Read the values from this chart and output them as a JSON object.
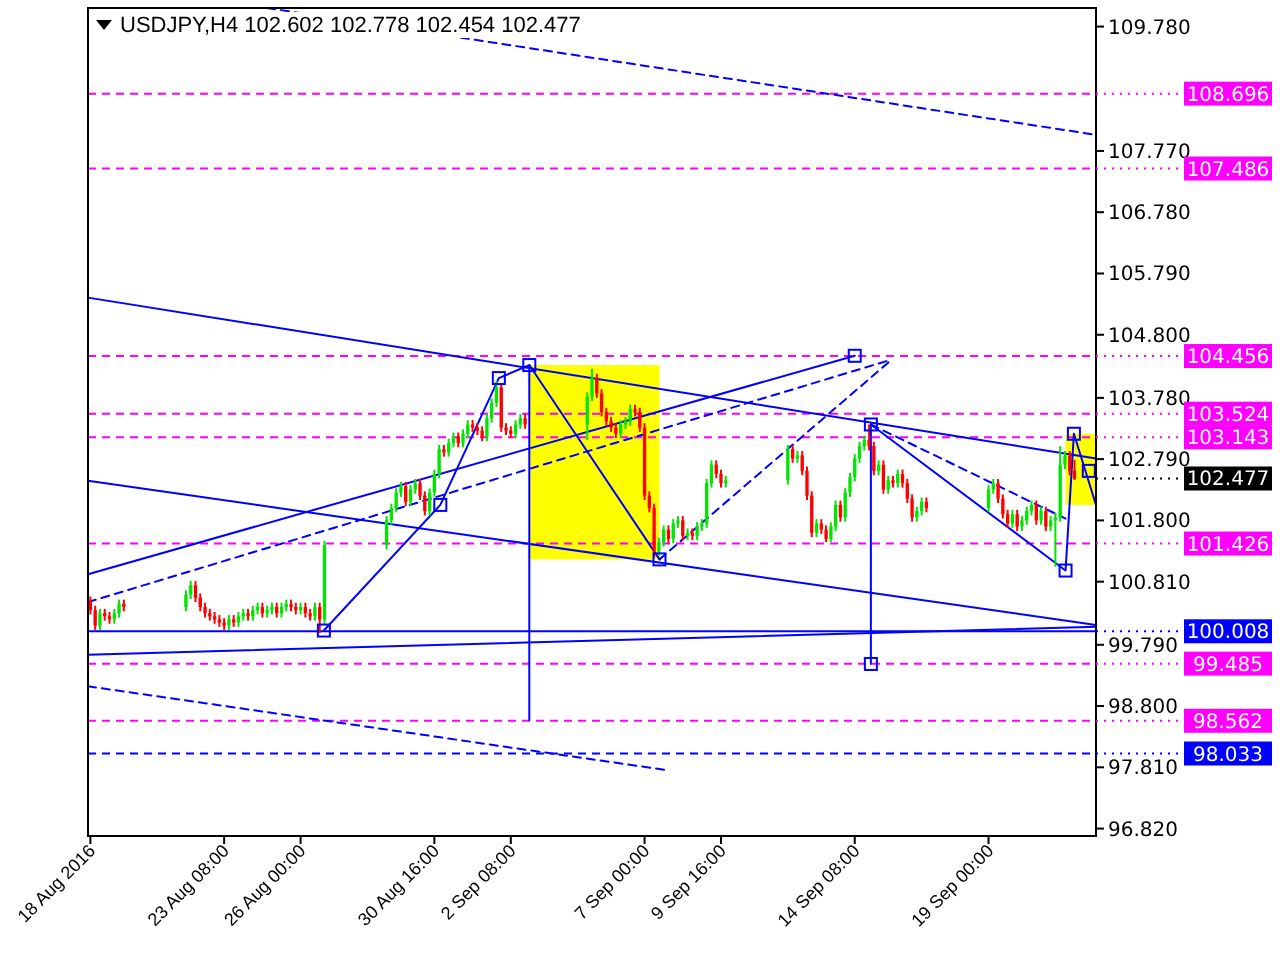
{
  "chart_data": {
    "type": "candlestick",
    "title": "USDJPY,H4  102.602 102.778 102.454 102.477",
    "x": [
      "2016-08-18T16:00",
      "2016-08-18T20:00",
      "2016-08-19T00:00",
      "2016-08-19T04:00",
      "2016-08-19T08:00",
      "2016-08-19T12:00",
      "2016-08-19T16:00",
      "2016-08-19T20:00",
      "2016-08-22T00:00",
      "2016-08-22T04:00",
      "2016-08-22T08:00",
      "2016-08-22T12:00",
      "2016-08-22T16:00",
      "2016-08-22T20:00",
      "2016-08-23T00:00",
      "2016-08-23T04:00",
      "2016-08-23T08:00",
      "2016-08-23T12:00",
      "2016-08-23T16:00",
      "2016-08-23T20:00",
      "2016-08-24T00:00",
      "2016-08-24T04:00",
      "2016-08-24T08:00",
      "2016-08-24T12:00",
      "2016-08-24T16:00",
      "2016-08-24T20:00",
      "2016-08-25T00:00",
      "2016-08-25T04:00",
      "2016-08-25T08:00",
      "2016-08-25T12:00",
      "2016-08-25T16:00",
      "2016-08-25T20:00",
      "2016-08-26T00:00",
      "2016-08-26T04:00",
      "2016-08-26T08:00",
      "2016-08-26T12:00",
      "2016-08-26T16:00",
      "2016-08-26T20:00",
      "2016-08-29T00:00",
      "2016-08-29T04:00",
      "2016-08-29T08:00",
      "2016-08-29T12:00",
      "2016-08-29T16:00",
      "2016-08-29T20:00",
      "2016-08-30T00:00",
      "2016-08-30T04:00",
      "2016-08-30T08:00",
      "2016-08-30T12:00",
      "2016-08-30T16:00",
      "2016-08-30T20:00",
      "2016-08-31T00:00",
      "2016-08-31T04:00",
      "2016-08-31T08:00",
      "2016-08-31T12:00",
      "2016-08-31T16:00",
      "2016-08-31T20:00",
      "2016-09-01T00:00",
      "2016-09-01T04:00",
      "2016-09-01T08:00",
      "2016-09-01T12:00",
      "2016-09-01T16:00",
      "2016-09-01T20:00",
      "2016-09-02T00:00",
      "2016-09-02T04:00",
      "2016-09-02T08:00",
      "2016-09-02T12:00",
      "2016-09-02T16:00",
      "2016-09-02T20:00",
      "2016-09-05T00:00",
      "2016-09-05T04:00",
      "2016-09-05T08:00",
      "2016-09-05T12:00",
      "2016-09-05T16:00",
      "2016-09-05T20:00",
      "2016-09-06T00:00",
      "2016-09-06T04:00",
      "2016-09-06T08:00",
      "2016-09-06T12:00",
      "2016-09-06T16:00",
      "2016-09-06T20:00",
      "2016-09-07T00:00",
      "2016-09-07T04:00",
      "2016-09-07T08:00",
      "2016-09-07T12:00",
      "2016-09-07T16:00",
      "2016-09-07T20:00",
      "2016-09-08T00:00",
      "2016-09-08T04:00",
      "2016-09-08T08:00",
      "2016-09-08T12:00",
      "2016-09-08T16:00",
      "2016-09-08T20:00",
      "2016-09-09T00:00",
      "2016-09-09T04:00",
      "2016-09-09T08:00",
      "2016-09-09T12:00",
      "2016-09-09T16:00",
      "2016-09-09T20:00",
      "2016-09-12T00:00",
      "2016-09-12T04:00",
      "2016-09-12T08:00",
      "2016-09-12T12:00",
      "2016-09-12T16:00",
      "2016-09-12T20:00",
      "2016-09-13T00:00",
      "2016-09-13T04:00",
      "2016-09-13T08:00",
      "2016-09-13T12:00",
      "2016-09-13T16:00",
      "2016-09-13T20:00",
      "2016-09-14T00:00",
      "2016-09-14T04:00",
      "2016-09-14T08:00",
      "2016-09-14T12:00",
      "2016-09-14T16:00",
      "2016-09-14T20:00",
      "2016-09-15T00:00",
      "2016-09-15T04:00",
      "2016-09-15T08:00",
      "2016-09-15T12:00",
      "2016-09-15T16:00",
      "2016-09-15T20:00",
      "2016-09-16T00:00",
      "2016-09-16T04:00",
      "2016-09-16T08:00",
      "2016-09-16T12:00",
      "2016-09-16T16:00",
      "2016-09-16T20:00",
      "2016-09-19T00:00",
      "2016-09-19T04:00",
      "2016-09-19T08:00",
      "2016-09-19T12:00",
      "2016-09-19T16:00",
      "2016-09-19T20:00",
      "2016-09-20T00:00",
      "2016-09-20T04:00",
      "2016-09-20T08:00",
      "2016-09-20T12:00",
      "2016-09-20T16:00",
      "2016-09-20T20:00",
      "2016-09-21T00:00",
      "2016-09-21T04:00",
      "2016-09-21T08:00",
      "2016-09-21T12:00",
      "2016-09-21T16:00",
      "2016-09-21T20:00",
      "2016-09-22T00:00"
    ],
    "xlim": [
      "2016-08-18T14:00",
      "2016-09-22T18:00"
    ],
    "xticks": [
      {
        "value": "2016-08-18T16:00",
        "label": "18 Aug 2016"
      },
      {
        "value": "2016-08-23T08:00",
        "label": "23 Aug 08:00"
      },
      {
        "value": "2016-08-26T00:00",
        "label": "26 Aug 00:00"
      },
      {
        "value": "2016-08-30T16:00",
        "label": "30 Aug 16:00"
      },
      {
        "value": "2016-09-02T08:00",
        "label": "2 Sep 08:00"
      },
      {
        "value": "2016-09-07T00:00",
        "label": "7 Sep 00:00"
      },
      {
        "value": "2016-09-09T16:00",
        "label": "9 Sep 16:00"
      },
      {
        "value": "2016-09-14T08:00",
        "label": "14 Sep 08:00"
      },
      {
        "value": "2016-09-19T00:00",
        "label": "19 Sep 00:00"
      }
    ],
    "ohlc": [
      [
        100.5,
        100.57,
        100.28,
        100.35
      ],
      [
        100.35,
        100.42,
        100.03,
        100.1
      ],
      [
        100.1,
        100.37,
        100.03,
        100.3
      ],
      [
        100.3,
        100.37,
        100.18,
        100.25
      ],
      [
        100.25,
        100.32,
        100.13,
        100.2
      ],
      [
        100.2,
        100.37,
        100.13,
        100.3
      ],
      [
        100.3,
        100.52,
        100.23,
        100.45
      ],
      [
        100.45,
        100.52,
        100.33,
        100.4
      ],
      [
        100.4,
        100.67,
        100.33,
        100.6
      ],
      [
        100.6,
        100.82,
        100.53,
        100.75
      ],
      [
        100.75,
        100.82,
        100.48,
        100.55
      ],
      [
        100.55,
        100.62,
        100.33,
        100.4
      ],
      [
        100.4,
        100.47,
        100.23,
        100.3
      ],
      [
        100.3,
        100.37,
        100.18,
        100.25
      ],
      [
        100.25,
        100.32,
        100.13,
        100.2
      ],
      [
        100.2,
        100.27,
        100.08,
        100.15
      ],
      [
        100.15,
        100.22,
        100.03,
        100.1
      ],
      [
        100.1,
        100.27,
        100.03,
        100.2
      ],
      [
        100.2,
        100.27,
        100.08,
        100.15
      ],
      [
        100.15,
        100.32,
        100.08,
        100.25
      ],
      [
        100.25,
        100.37,
        100.18,
        100.3
      ],
      [
        100.3,
        100.37,
        100.18,
        100.25
      ],
      [
        100.25,
        100.42,
        100.18,
        100.35
      ],
      [
        100.35,
        100.47,
        100.28,
        100.4
      ],
      [
        100.4,
        100.47,
        100.23,
        100.3
      ],
      [
        100.3,
        100.42,
        100.23,
        100.35
      ],
      [
        100.35,
        100.47,
        100.28,
        100.4
      ],
      [
        100.4,
        100.47,
        100.23,
        100.3
      ],
      [
        100.3,
        100.47,
        100.23,
        100.4
      ],
      [
        100.4,
        100.52,
        100.33,
        100.45
      ],
      [
        100.45,
        100.52,
        100.33,
        100.4
      ],
      [
        100.4,
        100.47,
        100.28,
        100.35
      ],
      [
        100.35,
        100.47,
        100.28,
        100.4
      ],
      [
        100.4,
        100.47,
        100.23,
        100.3
      ],
      [
        100.3,
        100.37,
        100.18,
        100.25
      ],
      [
        100.25,
        100.47,
        100.18,
        100.4
      ],
      [
        100.4,
        100.47,
        99.98,
        100.2
      ],
      [
        100.2,
        101.47,
        100.13,
        101.4
      ],
      [
        101.4,
        101.87,
        101.33,
        101.8
      ],
      [
        101.8,
        102.07,
        101.73,
        102.0
      ],
      [
        102.0,
        102.32,
        101.93,
        102.25
      ],
      [
        102.25,
        102.42,
        102.18,
        102.35
      ],
      [
        102.35,
        102.42,
        102.03,
        102.1
      ],
      [
        102.1,
        102.37,
        102.03,
        102.3
      ],
      [
        102.3,
        102.47,
        102.23,
        102.4
      ],
      [
        102.4,
        102.47,
        102.13,
        102.2
      ],
      [
        102.2,
        102.27,
        101.88,
        101.95
      ],
      [
        101.95,
        102.32,
        101.88,
        102.25
      ],
      [
        102.25,
        102.62,
        102.18,
        102.55
      ],
      [
        102.55,
        103.02,
        102.48,
        102.95
      ],
      [
        102.95,
        103.02,
        102.83,
        102.9
      ],
      [
        102.9,
        103.12,
        102.83,
        103.05
      ],
      [
        103.05,
        103.22,
        102.98,
        103.15
      ],
      [
        103.15,
        103.22,
        102.98,
        103.05
      ],
      [
        103.05,
        103.27,
        102.98,
        103.2
      ],
      [
        103.2,
        103.42,
        103.13,
        103.35
      ],
      [
        103.35,
        103.42,
        103.23,
        103.3
      ],
      [
        103.3,
        103.37,
        103.18,
        103.25
      ],
      [
        103.25,
        103.32,
        103.08,
        103.15
      ],
      [
        103.15,
        103.52,
        103.08,
        103.45
      ],
      [
        103.45,
        103.77,
        103.38,
        103.7
      ],
      [
        103.7,
        104.05,
        103.63,
        103.95
      ],
      [
        103.95,
        104.02,
        103.23,
        103.3
      ],
      [
        103.3,
        103.37,
        103.18,
        103.25
      ],
      [
        103.25,
        103.32,
        103.13,
        103.2
      ],
      [
        103.2,
        103.42,
        103.13,
        103.35
      ],
      [
        103.35,
        103.52,
        103.28,
        103.45
      ],
      [
        103.45,
        103.52,
        103.28,
        103.35
      ],
      [
        103.35,
        103.87,
        103.1,
        103.8
      ],
      [
        103.8,
        104.25,
        103.73,
        104.1
      ],
      [
        104.1,
        104.17,
        103.78,
        103.85
      ],
      [
        103.85,
        103.92,
        103.48,
        103.55
      ],
      [
        103.55,
        103.62,
        103.33,
        103.4
      ],
      [
        103.4,
        103.47,
        103.23,
        103.3
      ],
      [
        103.3,
        103.37,
        103.13,
        103.2
      ],
      [
        103.2,
        103.42,
        103.13,
        103.35
      ],
      [
        103.35,
        103.47,
        103.28,
        103.4
      ],
      [
        103.4,
        103.67,
        103.33,
        103.6
      ],
      [
        103.6,
        103.67,
        103.48,
        103.55
      ],
      [
        103.55,
        103.62,
        103.23,
        103.3
      ],
      [
        103.3,
        103.37,
        102.13,
        102.2
      ],
      [
        102.2,
        102.27,
        101.93,
        102.0
      ],
      [
        102.0,
        102.07,
        101.2,
        101.3
      ],
      [
        101.3,
        101.52,
        101.23,
        101.45
      ],
      [
        101.45,
        101.72,
        101.38,
        101.65
      ],
      [
        101.65,
        101.72,
        101.43,
        101.5
      ],
      [
        101.5,
        101.82,
        101.43,
        101.75
      ],
      [
        101.75,
        101.87,
        101.68,
        101.8
      ],
      [
        101.8,
        101.87,
        101.48,
        101.55
      ],
      [
        101.55,
        101.67,
        101.48,
        101.6
      ],
      [
        101.6,
        101.67,
        101.48,
        101.55
      ],
      [
        101.55,
        101.77,
        101.48,
        101.7
      ],
      [
        101.7,
        101.82,
        101.63,
        101.75
      ],
      [
        101.75,
        102.47,
        101.68,
        102.4
      ],
      [
        102.4,
        102.77,
        102.33,
        102.7
      ],
      [
        102.7,
        102.77,
        102.48,
        102.55
      ],
      [
        102.55,
        102.62,
        102.33,
        102.4
      ],
      [
        102.4,
        102.52,
        102.33,
        102.45
      ],
      [
        102.45,
        103.02,
        102.38,
        102.95
      ],
      [
        102.95,
        103.02,
        102.73,
        102.8
      ],
      [
        102.8,
        102.92,
        102.73,
        102.85
      ],
      [
        102.85,
        102.92,
        102.53,
        102.6
      ],
      [
        102.6,
        102.67,
        102.13,
        102.2
      ],
      [
        102.2,
        102.27,
        101.53,
        101.6
      ],
      [
        101.6,
        101.82,
        101.53,
        101.75
      ],
      [
        101.75,
        101.82,
        101.58,
        101.65
      ],
      [
        101.65,
        101.72,
        101.45,
        101.5
      ],
      [
        101.5,
        101.77,
        101.45,
        101.7
      ],
      [
        101.7,
        102.12,
        101.63,
        102.05
      ],
      [
        102.05,
        102.12,
        101.78,
        101.85
      ],
      [
        101.85,
        102.32,
        101.78,
        102.25
      ],
      [
        102.25,
        102.57,
        102.18,
        102.5
      ],
      [
        102.5,
        102.87,
        102.43,
        102.8
      ],
      [
        102.8,
        103.07,
        102.73,
        103.0
      ],
      [
        103.0,
        103.17,
        102.93,
        103.1
      ],
      [
        103.1,
        103.35,
        102.93,
        103.0
      ],
      [
        103.0,
        103.07,
        102.53,
        102.6
      ],
      [
        102.6,
        102.77,
        102.53,
        102.7
      ],
      [
        102.7,
        102.77,
        102.23,
        102.3
      ],
      [
        102.3,
        102.52,
        102.23,
        102.45
      ],
      [
        102.45,
        102.52,
        102.33,
        102.4
      ],
      [
        102.4,
        102.62,
        102.33,
        102.55
      ],
      [
        102.55,
        102.62,
        102.33,
        102.4
      ],
      [
        102.4,
        102.47,
        102.08,
        102.15
      ],
      [
        102.15,
        102.22,
        101.78,
        101.85
      ],
      [
        101.85,
        102.02,
        101.78,
        101.95
      ],
      [
        101.95,
        102.17,
        101.88,
        102.1
      ],
      [
        102.1,
        102.17,
        101.93,
        102.0
      ],
      [
        102.0,
        102.37,
        101.93,
        102.3
      ],
      [
        102.3,
        102.47,
        102.23,
        102.4
      ],
      [
        102.4,
        102.47,
        102.08,
        102.15
      ],
      [
        102.15,
        102.22,
        101.83,
        101.9
      ],
      [
        101.9,
        101.97,
        101.68,
        101.75
      ],
      [
        101.75,
        101.97,
        101.68,
        101.9
      ],
      [
        101.9,
        101.97,
        101.63,
        101.7
      ],
      [
        101.7,
        101.87,
        101.63,
        101.8
      ],
      [
        101.8,
        102.02,
        101.73,
        101.95
      ],
      [
        101.95,
        102.12,
        101.88,
        102.05
      ],
      [
        102.05,
        102.12,
        101.73,
        101.8
      ],
      [
        101.8,
        102.02,
        101.73,
        101.95
      ],
      [
        101.95,
        102.02,
        101.63,
        101.7
      ],
      [
        101.7,
        101.87,
        101.63,
        101.8
      ],
      [
        101.8,
        101.92,
        101.05,
        101.85
      ],
      [
        101.85,
        103.0,
        101.78,
        102.7
      ],
      [
        102.7,
        102.92,
        102.63,
        102.85
      ],
      [
        102.85,
        102.92,
        102.53,
        102.6
      ],
      [
        102.602,
        102.778,
        102.454,
        102.477
      ]
    ],
    "colors": [
      "#ff0000",
      "#ff0000",
      "#00e600",
      "#ff0000",
      "#ff0000",
      "#00e600",
      "#00e600",
      "#ff0000",
      "#00e600",
      "#00e600",
      "#ff0000",
      "#ff0000",
      "#ff0000",
      "#ff0000",
      "#ff0000",
      "#ff0000",
      "#ff0000",
      "#00e600",
      "#ff0000",
      "#00e600",
      "#00e600",
      "#ff0000",
      "#00e600",
      "#00e600",
      "#ff0000",
      "#00e600",
      "#00e600",
      "#ff0000",
      "#00e600",
      "#00e600",
      "#ff0000",
      "#ff0000",
      "#00e600",
      "#ff0000",
      "#ff0000",
      "#00e600",
      "#ff0000",
      "#00e600",
      "#00e600",
      "#00e600",
      "#00e600",
      "#00e600",
      "#ff0000",
      "#00e600",
      "#00e600",
      "#ff0000",
      "#ff0000",
      "#00e600",
      "#00e600",
      "#00e600",
      "#ff0000",
      "#00e600",
      "#00e600",
      "#ff0000",
      "#00e600",
      "#00e600",
      "#ff0000",
      "#ff0000",
      "#ff0000",
      "#00e600",
      "#00e600",
      "#00e600",
      "#ff0000",
      "#ff0000",
      "#ff0000",
      "#00e600",
      "#00e600",
      "#ff0000",
      "#00e600",
      "#00e600",
      "#ff0000",
      "#ff0000",
      "#ff0000",
      "#ff0000",
      "#ff0000",
      "#00e600",
      "#00e600",
      "#00e600",
      "#ff0000",
      "#ff0000",
      "#ff0000",
      "#ff0000",
      "#ff0000",
      "#00e600",
      "#00e600",
      "#ff0000",
      "#00e600",
      "#00e600",
      "#ff0000",
      "#00e600",
      "#ff0000",
      "#00e600",
      "#00e600",
      "#00e600",
      "#00e600",
      "#ff0000",
      "#ff0000",
      "#00e600",
      "#00e600",
      "#ff0000",
      "#00e600",
      "#ff0000",
      "#ff0000",
      "#ff0000",
      "#00e600",
      "#ff0000",
      "#ff0000",
      "#00e600",
      "#00e600",
      "#ff0000",
      "#00e600",
      "#00e600",
      "#00e600",
      "#00e600",
      "#00e600",
      "#ff0000",
      "#ff0000",
      "#00e600",
      "#ff0000",
      "#00e600",
      "#ff0000",
      "#00e600",
      "#ff0000",
      "#ff0000",
      "#ff0000",
      "#00e600",
      "#00e600",
      "#ff0000",
      "#00e600",
      "#00e600",
      "#ff0000",
      "#ff0000",
      "#ff0000",
      "#00e600",
      "#ff0000",
      "#00e600",
      "#00e600",
      "#00e600",
      "#ff0000",
      "#00e600",
      "#ff0000",
      "#00e600",
      "#00e600",
      "#00e600",
      "#00e600",
      "#ff0000",
      "#ff0000"
    ],
    "series": [
      {
        "type": "line",
        "x": [
          "2016-08-24T20:00",
          "2016-09-22T18:00"
        ],
        "values": [
          110.08,
          108.03
        ],
        "color": "#0000ff",
        "line_style": "dashed"
      },
      {
        "type": "line",
        "x": [
          "2016-08-18T14:00",
          "2016-09-22T18:00"
        ],
        "values": [
          105.4,
          102.8
        ],
        "color": "#0000ff",
        "line_style": "solid"
      },
      {
        "type": "line",
        "x": [
          "2016-08-18T14:00",
          "2016-09-14T08:00"
        ],
        "values": [
          100.93,
          104.46
        ],
        "color": "#0000ff",
        "line_style": "solid"
      },
      {
        "type": "line",
        "x": [
          "2016-08-18T14:00",
          "2016-09-15T15:00"
        ],
        "values": [
          100.48,
          104.4
        ],
        "color": "#0000ff",
        "line_style": "dashed"
      },
      {
        "type": "line",
        "x": [
          "2016-08-18T14:00",
          "2016-09-22T18:00"
        ],
        "values": [
          102.44,
          100.11
        ],
        "color": "#0000ff",
        "line_style": "solid"
      },
      {
        "type": "line",
        "x": [
          "2016-08-18T14:00",
          "2016-09-22T18:00"
        ],
        "values": [
          99.63,
          100.08
        ],
        "color": "#0000ff",
        "line_style": "solid"
      },
      {
        "type": "line",
        "x": [
          "2016-08-18T14:00",
          "2016-09-07T20:00"
        ],
        "values": [
          99.12,
          97.76
        ],
        "color": "#0000ff",
        "line_style": "dashed"
      },
      {
        "type": "line",
        "x": [
          "2016-09-02T23:30",
          "2016-09-02T23:30"
        ],
        "values": [
          104.31,
          98.57
        ],
        "color": "#0000ff",
        "line_style": "solid"
      },
      {
        "type": "line",
        "x": [
          "2016-09-14T21:30",
          "2016-09-14T21:30"
        ],
        "values": [
          103.35,
          99.48
        ],
        "color": "#0000ff",
        "line_style": "solid"
      },
      {
        "type": "line",
        "x": [
          "2016-08-26T19:30",
          "2016-08-30T21:00",
          "2016-09-01T22:00",
          "2016-09-02T23:30",
          "2016-09-07T12:30"
        ],
        "values": [
          100.02,
          102.05,
          104.1,
          104.31,
          101.17
        ],
        "color": "#0000ff",
        "line_style": "solid"
      },
      {
        "type": "line",
        "x": [
          "2016-09-14T21:30",
          "2016-09-21T16:30",
          "2016-09-21T23:30",
          "2016-09-22T18:00"
        ],
        "values": [
          103.35,
          100.99,
          103.2,
          102.05
        ],
        "color": "#0000ff",
        "line_style": "solid"
      },
      {
        "type": "line",
        "x": [
          "2016-09-14T21:30",
          "2016-09-21T16:30"
        ],
        "values": [
          103.35,
          101.83
        ],
        "color": "#0000ff",
        "line_style": "dashed"
      },
      {
        "type": "line",
        "x": [
          "2016-09-07T12:30",
          "2016-09-15T15:00"
        ],
        "values": [
          101.17,
          104.4
        ],
        "color": "#0000ff",
        "line_style": "dashed"
      },
      {
        "type": "scatter",
        "marker": "square",
        "x": [
          "2016-08-26T19:30",
          "2016-08-30T21:00",
          "2016-09-01T22:00",
          "2016-09-02T23:30",
          "2016-09-07T12:30",
          "2016-09-14T08:00",
          "2016-09-14T21:30",
          "2016-09-14T21:30",
          "2016-09-21T16:30",
          "2016-09-21T23:30",
          "2016-09-22T12:00"
        ],
        "values": [
          100.02,
          102.05,
          104.1,
          104.31,
          101.17,
          104.46,
          103.35,
          99.48,
          100.99,
          103.2,
          102.6
        ],
        "color": "#0000ff"
      }
    ],
    "ylim": [
      96.7,
      110.08
    ],
    "yticks": [
      {
        "value": 109.78,
        "label": "109.780"
      },
      {
        "value": 107.77,
        "label": "107.770"
      },
      {
        "value": 106.78,
        "label": "106.780"
      },
      {
        "value": 105.79,
        "label": "105.790"
      },
      {
        "value": 104.8,
        "label": "104.800"
      },
      {
        "value": 103.78,
        "label": "103.780"
      },
      {
        "value": 102.79,
        "label": "102.790"
      },
      {
        "value": 101.8,
        "label": "101.800"
      },
      {
        "value": 100.81,
        "label": "100.810"
      },
      {
        "value": 99.79,
        "label": "99.790"
      },
      {
        "value": 98.8,
        "label": "98.800"
      },
      {
        "value": 97.81,
        "label": "97.810"
      },
      {
        "value": 96.82,
        "label": "96.820"
      }
    ],
    "ref_lines": [
      {
        "axis": "y",
        "value": 108.696,
        "label": "108.696",
        "color": "#ff00ff",
        "line_style": "dashed"
      },
      {
        "axis": "y",
        "value": 107.486,
        "label": "107.486",
        "color": "#ff00ff",
        "line_style": "dashed"
      },
      {
        "axis": "y",
        "value": 104.456,
        "label": "104.456",
        "color": "#ff00ff",
        "line_style": "dashed"
      },
      {
        "axis": "y",
        "value": 103.524,
        "label": "103.524",
        "color": "#ff00ff",
        "line_style": "dashed"
      },
      {
        "axis": "y",
        "value": 103.143,
        "label": "103.143",
        "color": "#ff00ff",
        "line_style": "dashed"
      },
      {
        "axis": "y",
        "value": 102.477,
        "label": "102.477",
        "color": "#000000",
        "line_style": "none"
      },
      {
        "axis": "y",
        "value": 101.426,
        "label": "101.426",
        "color": "#ff00ff",
        "line_style": "dashed"
      },
      {
        "axis": "y",
        "value": 100.008,
        "label": "100.008",
        "color": "#0000ff",
        "line_style": "solid"
      },
      {
        "axis": "y",
        "value": 99.485,
        "label": "99.485",
        "color": "#ff00ff",
        "line_style": "dashed"
      },
      {
        "axis": "y",
        "value": 98.562,
        "label": "98.562",
        "color": "#ff00ff",
        "line_style": "dashed"
      },
      {
        "axis": "y",
        "value": 98.033,
        "label": "98.033",
        "color": "#0000ff",
        "line_style": "dashed"
      }
    ]
  }
}
